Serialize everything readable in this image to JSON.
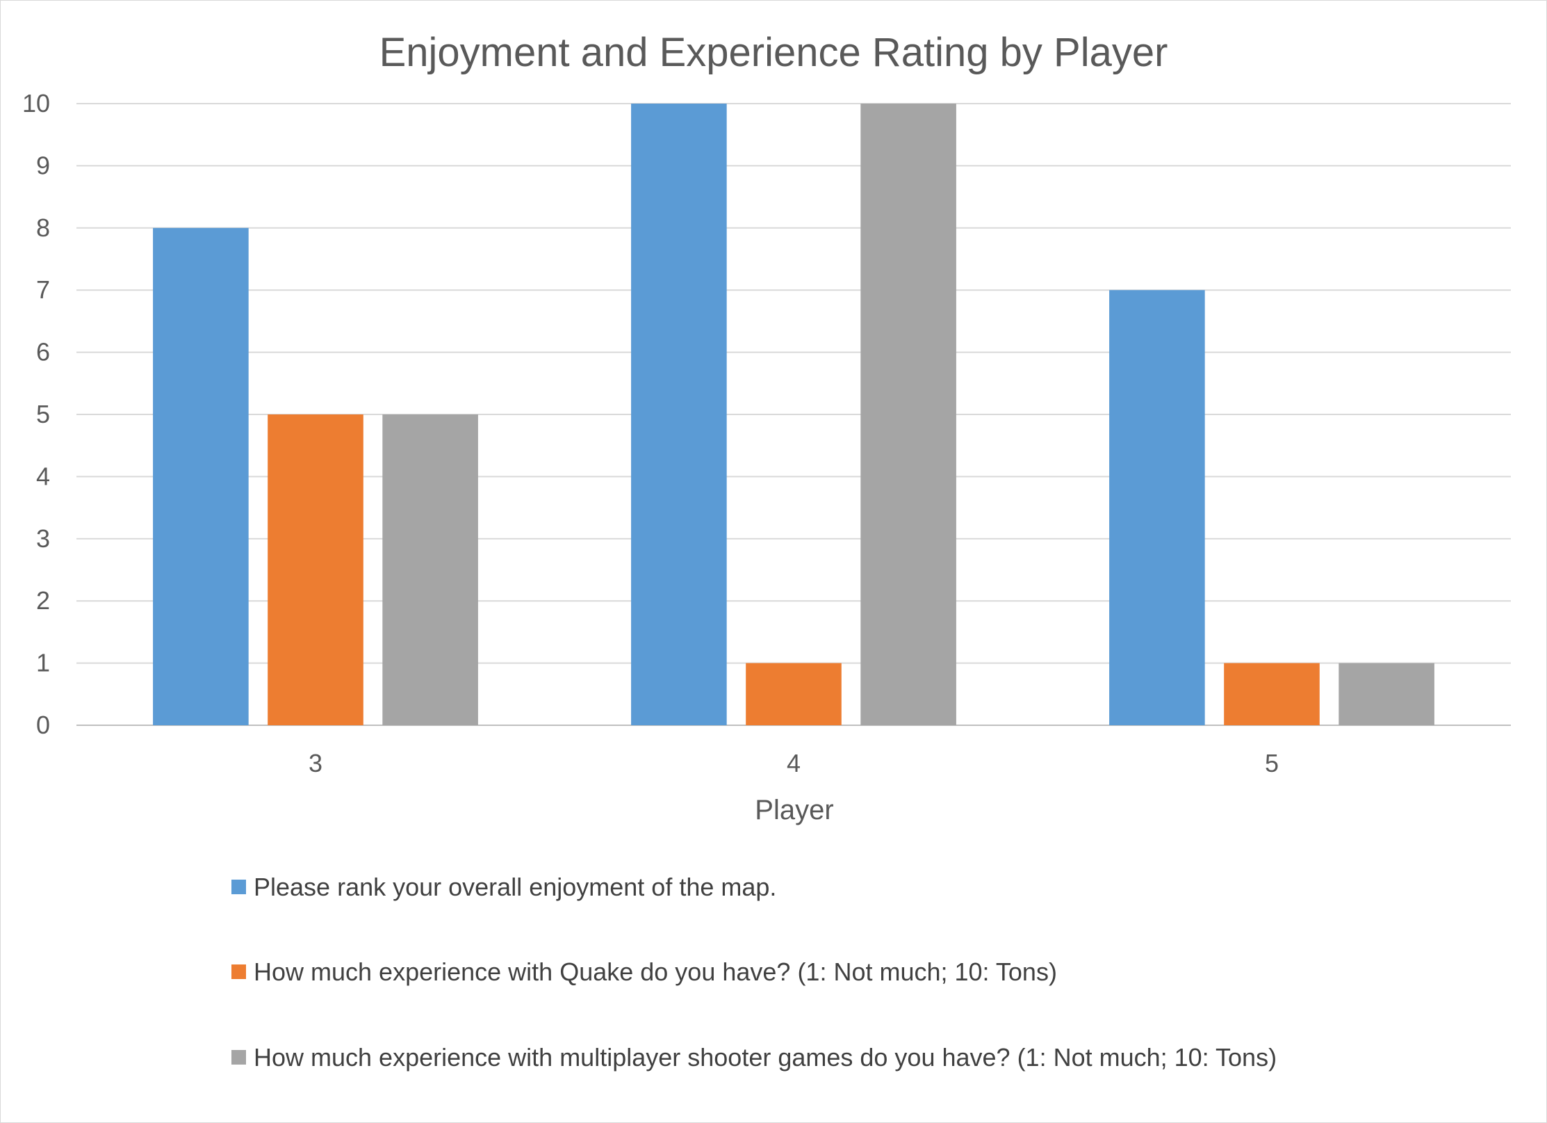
{
  "chart_data": {
    "type": "bar",
    "title": "Enjoyment and Experience Rating by Player",
    "xlabel": "Player",
    "ylabel": "",
    "categories": [
      "3",
      "4",
      "5"
    ],
    "ylim": [
      0,
      10
    ],
    "yticks": [
      0,
      1,
      2,
      3,
      4,
      5,
      6,
      7,
      8,
      9,
      10
    ],
    "grid": true,
    "legend_position": "bottom",
    "series": [
      {
        "name": "Please rank your overall enjoyment of the map.",
        "values": [
          8,
          10,
          7
        ],
        "color": "#5b9bd5"
      },
      {
        "name": "How much experience with Quake do you have? (1: Not much; 10: Tons)",
        "values": [
          5,
          1,
          1
        ],
        "color": "#ed7d31"
      },
      {
        "name": "How much experience with multiplayer shooter games do you have? (1: Not much; 10: Tons)",
        "values": [
          5,
          10,
          1
        ],
        "color": "#a5a5a5"
      }
    ]
  }
}
